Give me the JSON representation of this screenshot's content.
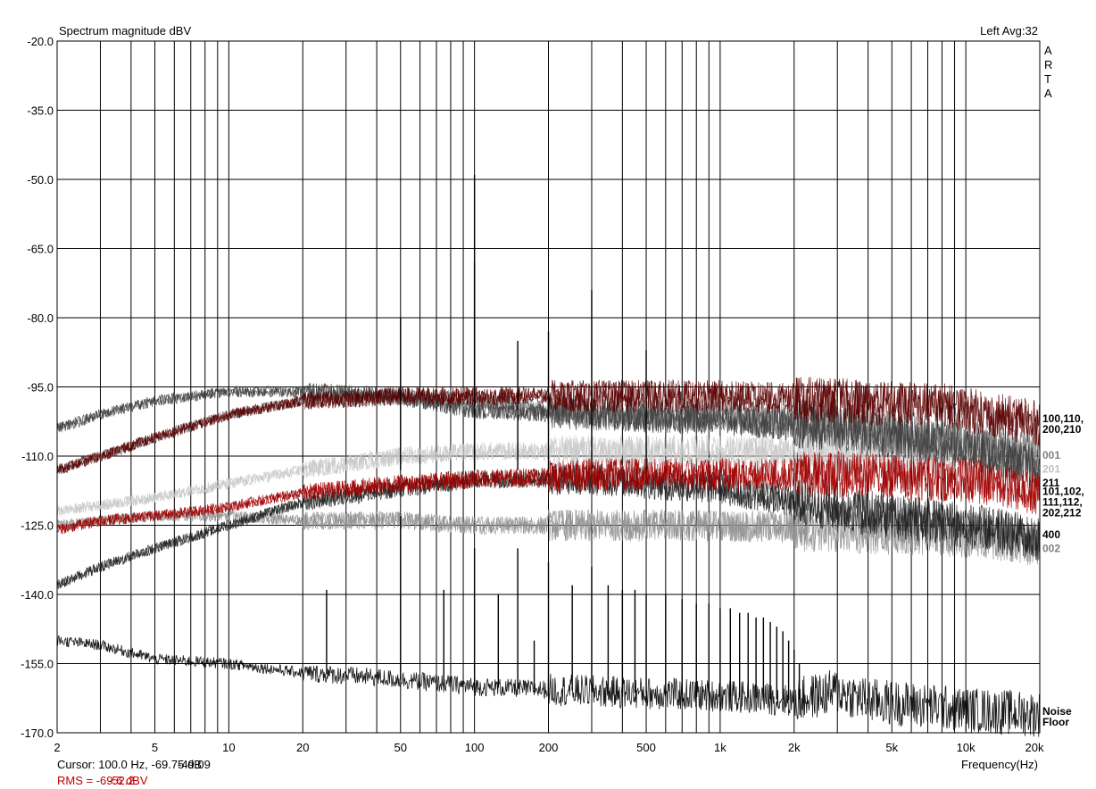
{
  "chart_data": {
    "type": "line",
    "title": "Spectrum magnitude dBV",
    "top_right_label": "Left  Avg:32",
    "watermark": [
      "A",
      "R",
      "T",
      "A"
    ],
    "xlabel": "Frequency(Hz)",
    "ylabel": "",
    "x_scale": "log",
    "xlim": [
      2,
      20000
    ],
    "ylim": [
      -170,
      -20
    ],
    "grid": true,
    "x_ticks": [
      {
        "value": 2,
        "label": "2"
      },
      {
        "value": 5,
        "label": "5"
      },
      {
        "value": 10,
        "label": "10"
      },
      {
        "value": 20,
        "label": "20"
      },
      {
        "value": 50,
        "label": "50"
      },
      {
        "value": 100,
        "label": "100"
      },
      {
        "value": 200,
        "label": "200"
      },
      {
        "value": 500,
        "label": "500"
      },
      {
        "value": 1000,
        "label": "1k"
      },
      {
        "value": 2000,
        "label": "2k"
      },
      {
        "value": 5000,
        "label": "5k"
      },
      {
        "value": 10000,
        "label": "10k"
      },
      {
        "value": 20000,
        "label": "20k"
      }
    ],
    "y_ticks": [
      {
        "value": -20,
        "label": "-20.0"
      },
      {
        "value": -35,
        "label": "-35.0"
      },
      {
        "value": -50,
        "label": "-50.0"
      },
      {
        "value": -65,
        "label": "-65.0"
      },
      {
        "value": -80,
        "label": "-80.0"
      },
      {
        "value": -95,
        "label": "-95.0"
      },
      {
        "value": -110,
        "label": "-110.0"
      },
      {
        "value": -125,
        "label": "-125.0"
      },
      {
        "value": -140,
        "label": "-140.0"
      },
      {
        "value": -155,
        "label": "-155.0"
      },
      {
        "value": -170,
        "label": "-170.0"
      }
    ],
    "series": [
      {
        "name": "100,110,200,210",
        "color": "#5a0000",
        "points": [
          [
            2,
            -113
          ],
          [
            3,
            -110
          ],
          [
            5,
            -106
          ],
          [
            10,
            -101
          ],
          [
            20,
            -98
          ],
          [
            50,
            -97
          ],
          [
            100,
            -97
          ],
          [
            300,
            -97
          ],
          [
            1000,
            -97
          ],
          [
            3000,
            -98
          ],
          [
            8000,
            -99
          ],
          [
            20000,
            -103
          ]
        ]
      },
      {
        "name": "001",
        "color": "#808080",
        "points": [
          [
            2,
            -113
          ],
          [
            3,
            -110
          ],
          [
            5,
            -106
          ],
          [
            10,
            -101
          ],
          [
            20,
            -98
          ],
          [
            50,
            -97
          ],
          [
            100,
            -98
          ],
          [
            300,
            -101
          ],
          [
            1000,
            -101
          ],
          [
            3000,
            -103
          ],
          [
            10000,
            -107
          ],
          [
            20000,
            -110
          ]
        ]
      },
      {
        "name": "201",
        "color": "#c8c8c8",
        "points": [
          [
            2,
            -122
          ],
          [
            5,
            -119
          ],
          [
            10,
            -116
          ],
          [
            20,
            -113
          ],
          [
            50,
            -110
          ],
          [
            100,
            -109
          ],
          [
            500,
            -109
          ],
          [
            2000,
            -109
          ],
          [
            10000,
            -109
          ],
          [
            20000,
            -110
          ]
        ]
      },
      {
        "name": "211",
        "color": "#404040",
        "points": [
          [
            2,
            -104
          ],
          [
            3,
            -101
          ],
          [
            5,
            -98
          ],
          [
            10,
            -96
          ],
          [
            20,
            -96
          ],
          [
            50,
            -97
          ],
          [
            100,
            -100
          ],
          [
            300,
            -101
          ],
          [
            1000,
            -102
          ],
          [
            3000,
            -104
          ],
          [
            10000,
            -108
          ],
          [
            20000,
            -113
          ]
        ]
      },
      {
        "name": "101,102,111,112,202,212",
        "color": "#a00000",
        "points": [
          [
            2,
            -126
          ],
          [
            3,
            -124
          ],
          [
            5,
            -123
          ],
          [
            10,
            -121
          ],
          [
            20,
            -118
          ],
          [
            50,
            -116
          ],
          [
            100,
            -115
          ],
          [
            300,
            -114
          ],
          [
            1000,
            -114
          ],
          [
            3000,
            -114
          ],
          [
            10000,
            -115
          ],
          [
            20000,
            -118
          ]
        ]
      },
      {
        "name": "400",
        "color": "#202020",
        "points": [
          [
            2,
            -138
          ],
          [
            3,
            -134
          ],
          [
            5,
            -130
          ],
          [
            10,
            -125
          ],
          [
            20,
            -120
          ],
          [
            50,
            -117
          ],
          [
            100,
            -115
          ],
          [
            300,
            -115
          ],
          [
            1000,
            -117
          ],
          [
            2000,
            -120
          ],
          [
            5000,
            -123
          ],
          [
            10000,
            -125
          ],
          [
            20000,
            -128
          ]
        ]
      },
      {
        "name": "002",
        "color": "#909090",
        "points": [
          [
            2,
            -125
          ],
          [
            3,
            -124
          ],
          [
            5,
            -123
          ],
          [
            10,
            -123
          ],
          [
            20,
            -124
          ],
          [
            50,
            -124
          ],
          [
            100,
            -125
          ],
          [
            1000,
            -125
          ],
          [
            3000,
            -126
          ],
          [
            10000,
            -127
          ],
          [
            20000,
            -129
          ]
        ]
      },
      {
        "name": "Noise Floor",
        "color": "#000000",
        "points": [
          [
            2,
            -150
          ],
          [
            3,
            -151
          ],
          [
            5,
            -154
          ],
          [
            10,
            -155
          ],
          [
            20,
            -157
          ],
          [
            40,
            -158
          ],
          [
            100,
            -160
          ],
          [
            300,
            -161
          ],
          [
            1000,
            -162
          ],
          [
            2000,
            -163
          ],
          [
            3000,
            -161
          ],
          [
            4000,
            -163
          ],
          [
            10000,
            -165
          ],
          [
            20000,
            -166
          ]
        ]
      }
    ],
    "peaks": [
      {
        "series": "main",
        "freq": 50,
        "top": -80
      },
      {
        "series": "main",
        "freq": 100,
        "top": -49
      },
      {
        "series": "main",
        "freq": 100,
        "top": -68
      },
      {
        "series": "main",
        "freq": 150,
        "top": -85
      },
      {
        "series": "main",
        "freq": 200,
        "top": -83
      },
      {
        "series": "main",
        "freq": 300,
        "top": -74
      },
      {
        "series": "main",
        "freq": 500,
        "top": -87
      },
      {
        "series": "noise",
        "freq": 25,
        "top": -139
      },
      {
        "series": "noise",
        "freq": 50,
        "top": -123
      },
      {
        "series": "noise",
        "freq": 75,
        "top": -139
      },
      {
        "series": "noise",
        "freq": 100,
        "top": -130
      },
      {
        "series": "noise",
        "freq": 125,
        "top": -140
      },
      {
        "series": "noise",
        "freq": 150,
        "top": -130
      },
      {
        "series": "noise",
        "freq": 175,
        "top": -150
      },
      {
        "series": "noise",
        "freq": 200,
        "top": -133
      },
      {
        "series": "noise",
        "freq": 250,
        "top": -138
      },
      {
        "series": "noise",
        "freq": 300,
        "top": -134
      },
      {
        "series": "noise",
        "freq": 350,
        "top": -138
      },
      {
        "series": "noise",
        "freq": 400,
        "top": -139
      },
      {
        "series": "noise",
        "freq": 450,
        "top": -139
      },
      {
        "series": "noise",
        "freq": 500,
        "top": -140
      },
      {
        "series": "noise",
        "freq": 600,
        "top": -140
      },
      {
        "series": "noise",
        "freq": 700,
        "top": -141
      },
      {
        "series": "noise",
        "freq": 800,
        "top": -142
      },
      {
        "series": "noise",
        "freq": 900,
        "top": -142
      },
      {
        "series": "noise",
        "freq": 1000,
        "top": -143
      },
      {
        "series": "noise",
        "freq": 1100,
        "top": -143
      },
      {
        "series": "noise",
        "freq": 1200,
        "top": -144
      },
      {
        "series": "noise",
        "freq": 1300,
        "top": -144
      },
      {
        "series": "noise",
        "freq": 1400,
        "top": -145
      },
      {
        "series": "noise",
        "freq": 1500,
        "top": -145
      },
      {
        "series": "noise",
        "freq": 1600,
        "top": -146
      },
      {
        "series": "noise",
        "freq": 1700,
        "top": -147
      },
      {
        "series": "noise",
        "freq": 1800,
        "top": -148
      },
      {
        "series": "noise",
        "freq": 1900,
        "top": -150
      },
      {
        "series": "noise",
        "freq": 2000,
        "top": -152
      },
      {
        "series": "noise",
        "freq": 2100,
        "top": -155
      }
    ],
    "legend_labels": [
      {
        "lines": [
          "100,110,",
          "200,210"
        ],
        "value": -103,
        "color": "#000000"
      },
      {
        "lines": [
          "001"
        ],
        "value": -109.8,
        "color": "#808080"
      },
      {
        "lines": [
          "201"
        ],
        "value": -112.8,
        "color": "#c0c0c0"
      },
      {
        "lines": [
          "211"
        ],
        "value": -115.8,
        "color": "#000000"
      },
      {
        "lines": [
          "101,102,",
          "111,112,",
          "202,212"
        ],
        "value": -120,
        "color": "#000000"
      },
      {
        "lines": [
          "400"
        ],
        "value": -127,
        "color": "#000000"
      },
      {
        "lines": [
          "002"
        ],
        "value": -130,
        "color": "#808080"
      },
      {
        "lines": [
          "Noise",
          "Floor"
        ],
        "value": -166.5,
        "color": "#000000"
      }
    ],
    "cursor_text": "Cursor:   100.0 Hz, -69.75 dB",
    "cursor_overlay_text": "-49.09",
    "rms_text": "RMS =  -69.6 dBV",
    "rms_overlay_text": "-52.2",
    "rms_color": "#c00000"
  }
}
